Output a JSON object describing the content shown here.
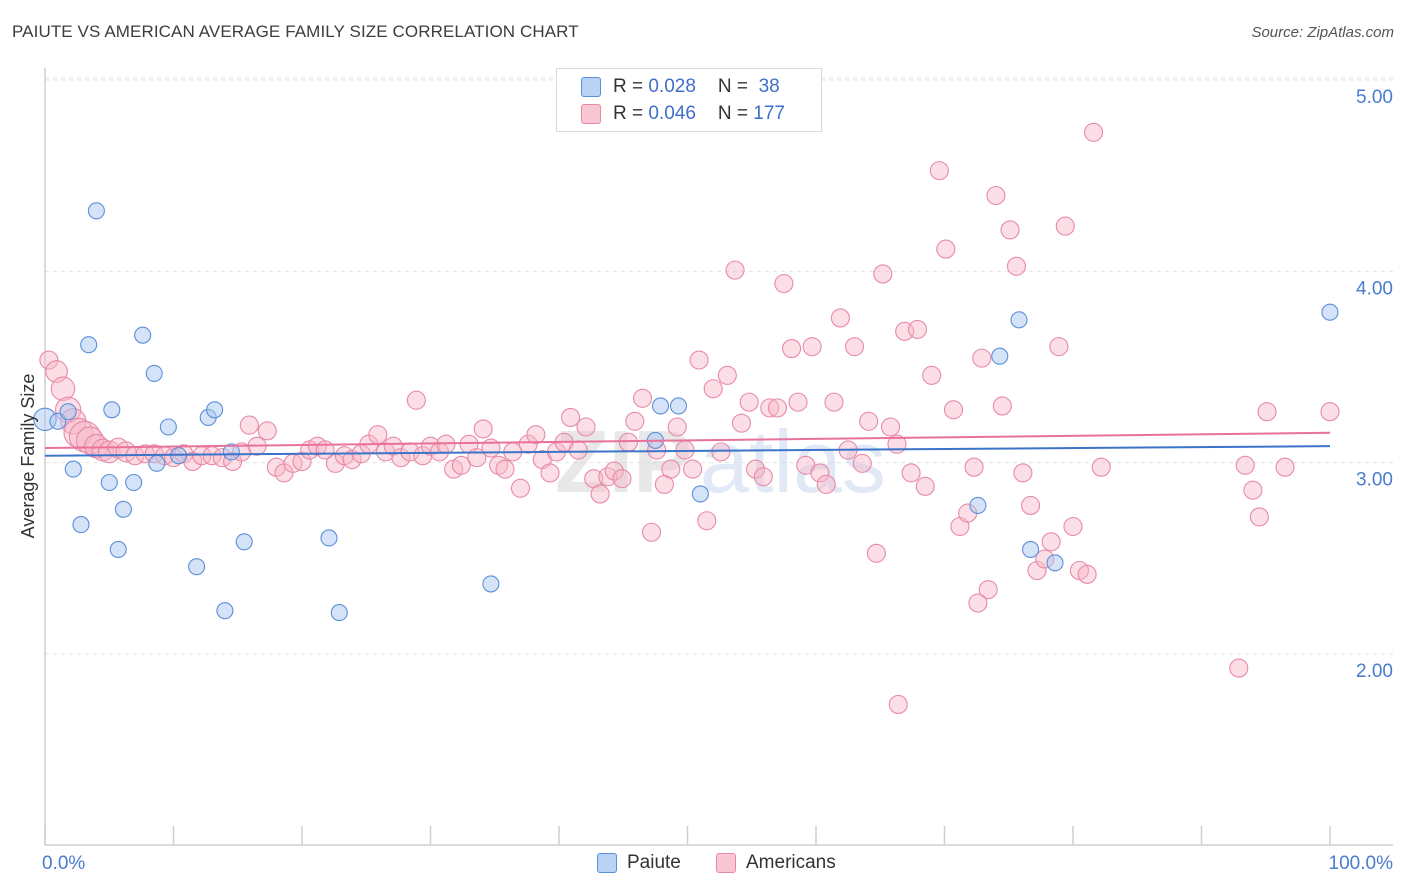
{
  "title": "PAIUTE VS AMERICAN AVERAGE FAMILY SIZE CORRELATION CHART",
  "source": "Source: ZipAtlas.com",
  "legend": {
    "paiute": {
      "r_label": "R = ",
      "r_value": "0.028",
      "n_label": "N = ",
      "n_value": " 38"
    },
    "americans": {
      "r_label": "R = ",
      "r_value": "0.046",
      "n_label": "N = ",
      "n_value": "177"
    }
  },
  "bottom_legend": [
    "Paiute",
    "Americans"
  ],
  "colors": {
    "paiute_fill": "#a9c7f0",
    "paiute_stroke": "#5b8fd9",
    "paiute_line": "#3c74c9",
    "americans_fill": "#f7b6c8",
    "americans_stroke": "#e88aa7",
    "americans_line": "#e8729a",
    "tick_text": "#4a7bd0",
    "grid": "#e2e2e2"
  },
  "chart_data": {
    "type": "scatter",
    "title": "PAIUTE VS AMERICAN AVERAGE FAMILY SIZE CORRELATION CHART",
    "xlabel": "",
    "ylabel": "Average Family Size",
    "x_tick_labels": [
      "0.0%",
      "100.0%"
    ],
    "y_ticks": [
      2.0,
      3.0,
      4.0,
      5.0
    ],
    "y_tick_labels": [
      "2.00",
      "3.00",
      "4.00",
      "5.00"
    ],
    "xlim": [
      0,
      100
    ],
    "ylim": [
      1.05,
      5.1
    ],
    "grid": true,
    "legend_position": "top-center",
    "watermark": "ZIPatlas",
    "series": [
      {
        "name": "Paiute",
        "R": 0.028,
        "N": 38,
        "trend": {
          "x0": 0,
          "y0": 3.12,
          "x1": 100,
          "y1": 3.17
        },
        "points": [
          [
            0,
            3.31,
            1.4
          ],
          [
            1.0,
            3.3,
            1
          ],
          [
            1.8,
            3.35,
            1
          ],
          [
            2.2,
            3.05,
            1
          ],
          [
            2.8,
            2.76,
            1
          ],
          [
            3.4,
            3.7,
            1
          ],
          [
            4.0,
            4.4,
            1
          ],
          [
            5.2,
            3.36,
            1
          ],
          [
            5.0,
            2.98,
            1
          ],
          [
            5.7,
            2.63,
            1
          ],
          [
            6.1,
            2.84,
            1
          ],
          [
            6.9,
            2.98,
            1
          ],
          [
            7.6,
            3.75,
            1
          ],
          [
            8.5,
            3.55,
            1
          ],
          [
            8.7,
            3.08,
            1
          ],
          [
            9.6,
            3.27,
            1
          ],
          [
            10.4,
            3.12,
            1
          ],
          [
            11.8,
            2.54,
            1
          ],
          [
            12.7,
            3.32,
            1
          ],
          [
            13.2,
            3.36,
            1
          ],
          [
            14.0,
            2.31,
            1
          ],
          [
            14.5,
            3.14,
            1
          ],
          [
            15.5,
            2.67,
            1
          ],
          [
            22.1,
            2.69,
            1
          ],
          [
            22.9,
            2.3,
            1
          ],
          [
            34.7,
            2.45,
            1
          ],
          [
            47.5,
            3.2,
            1
          ],
          [
            47.9,
            3.38,
            1
          ],
          [
            49.3,
            3.38,
            1
          ],
          [
            51.0,
            2.92,
            1
          ],
          [
            72.6,
            2.86,
            1
          ],
          [
            74.3,
            3.64,
            1
          ],
          [
            75.8,
            3.83,
            1
          ],
          [
            76.7,
            2.63,
            1
          ],
          [
            78.6,
            2.56,
            1
          ],
          [
            100.0,
            3.87,
            1
          ]
        ]
      },
      {
        "name": "Americans",
        "R": 0.046,
        "N": 177,
        "trend": {
          "x0": 0,
          "y0": 3.16,
          "x1": 100,
          "y1": 3.24
        },
        "points": [
          [
            0.3,
            3.62,
            1
          ],
          [
            0.9,
            3.56,
            1.2
          ],
          [
            1.4,
            3.47,
            1.3
          ],
          [
            1.8,
            3.36,
            1.4
          ],
          [
            2.2,
            3.3,
            1.4
          ],
          [
            2.6,
            3.24,
            1.6
          ],
          [
            3.1,
            3.22,
            1.7
          ],
          [
            3.5,
            3.2,
            1.5
          ],
          [
            4.0,
            3.17,
            1.3
          ],
          [
            4.5,
            3.15,
            1.2
          ],
          [
            5.0,
            3.14,
            1.2
          ],
          [
            5.7,
            3.16,
            1.1
          ],
          [
            6.3,
            3.14,
            1.1
          ],
          [
            7.0,
            3.12,
            1
          ],
          [
            7.8,
            3.13,
            1
          ],
          [
            8.5,
            3.13,
            1
          ],
          [
            9.3,
            3.12,
            1
          ],
          [
            10.0,
            3.11,
            1
          ],
          [
            10.8,
            3.13,
            1
          ],
          [
            11.5,
            3.09,
            1
          ],
          [
            12.2,
            3.12,
            1
          ],
          [
            13.0,
            3.12,
            1
          ],
          [
            13.8,
            3.11,
            1
          ],
          [
            14.6,
            3.09,
            1
          ],
          [
            15.3,
            3.14,
            1
          ],
          [
            15.9,
            3.28,
            1
          ],
          [
            16.5,
            3.17,
            1
          ],
          [
            17.3,
            3.25,
            1
          ],
          [
            18.0,
            3.06,
            1
          ],
          [
            18.6,
            3.03,
            1
          ],
          [
            19.3,
            3.08,
            1
          ],
          [
            20.0,
            3.09,
            1
          ],
          [
            20.6,
            3.15,
            1
          ],
          [
            21.2,
            3.17,
            1
          ],
          [
            21.8,
            3.15,
            1
          ],
          [
            22.6,
            3.08,
            1
          ],
          [
            23.3,
            3.12,
            1
          ],
          [
            23.9,
            3.1,
            1
          ],
          [
            24.6,
            3.13,
            1
          ],
          [
            25.2,
            3.18,
            1
          ],
          [
            25.9,
            3.23,
            1
          ],
          [
            26.5,
            3.14,
            1
          ],
          [
            27.1,
            3.17,
            1
          ],
          [
            27.7,
            3.11,
            1
          ],
          [
            28.4,
            3.14,
            1
          ],
          [
            28.9,
            3.41,
            1
          ],
          [
            29.4,
            3.12,
            1
          ],
          [
            30.0,
            3.17,
            1
          ],
          [
            30.7,
            3.14,
            1
          ],
          [
            31.2,
            3.18,
            1
          ],
          [
            31.8,
            3.05,
            1
          ],
          [
            32.4,
            3.07,
            1
          ],
          [
            33.0,
            3.18,
            1
          ],
          [
            33.6,
            3.11,
            1
          ],
          [
            34.1,
            3.26,
            1
          ],
          [
            34.7,
            3.16,
            1
          ],
          [
            35.3,
            3.07,
            1
          ],
          [
            35.8,
            3.05,
            1
          ],
          [
            36.4,
            3.14,
            1
          ],
          [
            37.0,
            2.95,
            1
          ],
          [
            37.6,
            3.18,
            1
          ],
          [
            38.2,
            3.23,
            1
          ],
          [
            38.7,
            3.1,
            1
          ],
          [
            39.3,
            3.03,
            1
          ],
          [
            39.8,
            3.14,
            1
          ],
          [
            40.4,
            3.19,
            1
          ],
          [
            40.9,
            3.32,
            1
          ],
          [
            41.5,
            3.15,
            1
          ],
          [
            42.1,
            3.27,
            1
          ],
          [
            42.7,
            3.0,
            1
          ],
          [
            43.2,
            2.92,
            1
          ],
          [
            43.8,
            3.01,
            1
          ],
          [
            44.3,
            3.04,
            1
          ],
          [
            44.9,
            3.0,
            1
          ],
          [
            45.4,
            3.19,
            1
          ],
          [
            45.9,
            3.3,
            1
          ],
          [
            46.5,
            3.42,
            1
          ],
          [
            47.2,
            2.72,
            1
          ],
          [
            47.6,
            3.15,
            1
          ],
          [
            48.2,
            2.97,
            1
          ],
          [
            48.7,
            3.05,
            1
          ],
          [
            49.2,
            3.27,
            1
          ],
          [
            49.8,
            3.15,
            1
          ],
          [
            50.4,
            3.05,
            1
          ],
          [
            50.9,
            3.62,
            1
          ],
          [
            51.5,
            2.78,
            1
          ],
          [
            52.0,
            3.47,
            1
          ],
          [
            52.6,
            3.14,
            1
          ],
          [
            53.1,
            3.54,
            1
          ],
          [
            53.7,
            4.09,
            1
          ],
          [
            54.2,
            3.29,
            1
          ],
          [
            54.8,
            3.4,
            1
          ],
          [
            55.3,
            3.05,
            1
          ],
          [
            55.9,
            3.01,
            1
          ],
          [
            56.4,
            3.37,
            1
          ],
          [
            57.0,
            3.37,
            1
          ],
          [
            57.5,
            4.02,
            1
          ],
          [
            58.1,
            3.68,
            1
          ],
          [
            58.6,
            3.4,
            1
          ],
          [
            59.2,
            3.07,
            1
          ],
          [
            59.7,
            3.69,
            1
          ],
          [
            60.3,
            3.03,
            1
          ],
          [
            60.8,
            2.97,
            1
          ],
          [
            61.4,
            3.4,
            1
          ],
          [
            61.9,
            3.84,
            1
          ],
          [
            62.5,
            3.15,
            1
          ],
          [
            63.0,
            3.69,
            1
          ],
          [
            63.6,
            3.08,
            1
          ],
          [
            64.1,
            3.3,
            1
          ],
          [
            64.7,
            2.61,
            1
          ],
          [
            65.2,
            4.07,
            1
          ],
          [
            65.8,
            3.27,
            1
          ],
          [
            66.3,
            3.18,
            1
          ],
          [
            66.9,
            3.77,
            1
          ],
          [
            67.4,
            3.03,
            1
          ],
          [
            67.9,
            3.78,
            1
          ],
          [
            68.5,
            2.96,
            1
          ],
          [
            69.0,
            3.54,
            1
          ],
          [
            69.6,
            4.61,
            1
          ],
          [
            70.1,
            4.2,
            1
          ],
          [
            70.7,
            3.36,
            1
          ],
          [
            71.2,
            2.75,
            1
          ],
          [
            71.8,
            2.82,
            1
          ],
          [
            72.3,
            3.06,
            1
          ],
          [
            72.9,
            3.63,
            1
          ],
          [
            73.4,
            2.42,
            1
          ],
          [
            74.0,
            4.48,
            1
          ],
          [
            74.5,
            3.38,
            1
          ],
          [
            75.1,
            4.3,
            1
          ],
          [
            75.6,
            4.11,
            1
          ],
          [
            76.1,
            3.03,
            1
          ],
          [
            76.7,
            2.86,
            1
          ],
          [
            77.2,
            2.52,
            1
          ],
          [
            77.8,
            2.58,
            1
          ],
          [
            78.3,
            2.67,
            1
          ],
          [
            78.9,
            3.69,
            1
          ],
          [
            79.4,
            4.32,
            1
          ],
          [
            80.0,
            2.75,
            1
          ],
          [
            80.5,
            2.52,
            1
          ],
          [
            81.1,
            2.5,
            1
          ],
          [
            81.6,
            4.81,
            1
          ],
          [
            82.2,
            3.06,
            1
          ],
          [
            66.4,
            1.82,
            1
          ],
          [
            72.6,
            2.35,
            1
          ],
          [
            92.9,
            2.01,
            1
          ],
          [
            93.4,
            3.07,
            1
          ],
          [
            94.0,
            2.94,
            1
          ],
          [
            94.5,
            2.8,
            1
          ],
          [
            95.1,
            3.35,
            1
          ],
          [
            96.5,
            3.06,
            1
          ],
          [
            100.0,
            3.35,
            1
          ]
        ]
      }
    ]
  }
}
